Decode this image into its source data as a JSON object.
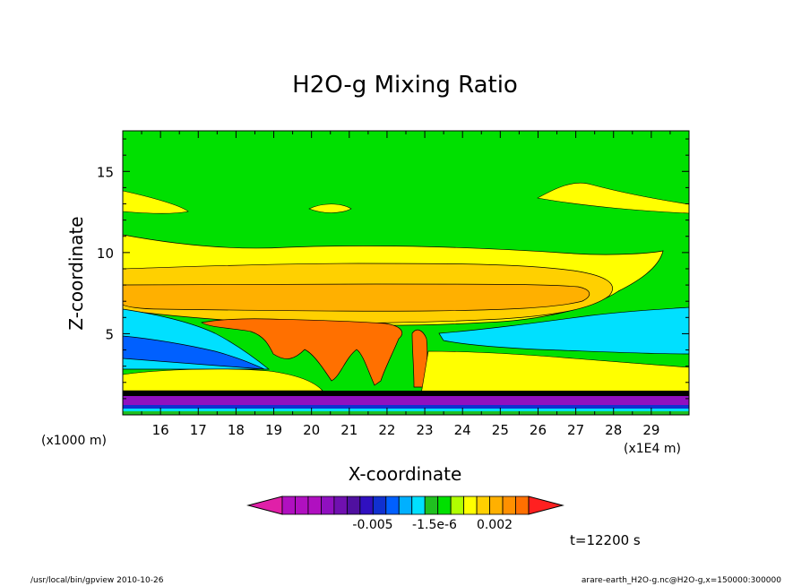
{
  "chart_data": {
    "type": "heatmap",
    "title": "H2O-g Mixing Ratio",
    "xlabel": "X-coordinate",
    "ylabel": "Z-coordinate",
    "x_unit_label": "(x1E4 m)",
    "y_unit_label": "(x1000 m)",
    "x_ticks": [
      "16",
      "17",
      "18",
      "19",
      "20",
      "21",
      "22",
      "23",
      "24",
      "25",
      "26",
      "27",
      "28",
      "29"
    ],
    "y_ticks": [
      "5",
      "10",
      "15"
    ],
    "xlim": [
      15.0,
      30.0
    ],
    "ylim": [
      0.0,
      17.5
    ],
    "colorbar_labels": [
      "-0.005",
      "-1.5e-6",
      "0.002"
    ],
    "colorbar_colors": [
      "#e020a8",
      "#b010c0",
      "#b010c0",
      "#b010c0",
      "#9010c0",
      "#7010b0",
      "#5010a0",
      "#3010c0",
      "#1030d0",
      "#0060ff",
      "#00b0ff",
      "#00e0ff",
      "#20c020",
      "#00e000",
      "#b0ff00",
      "#ffff00",
      "#ffd000",
      "#ffb000",
      "#ff9000",
      "#ff7000",
      "#ff2020"
    ],
    "time_label": "t=12200 s",
    "layers": [
      {
        "name": "background",
        "color": "#00e000"
      },
      {
        "name": "upper_yellow_band",
        "color": "#ffff00",
        "z_range": [
          8.6,
          11.0
        ]
      },
      {
        "name": "orange_layer",
        "color": "#ffd000",
        "z_range": [
          7.2,
          9.6
        ]
      },
      {
        "name": "deep_orange_anvil",
        "color": "#ffb000",
        "z_range": [
          6.8,
          8.2
        ]
      },
      {
        "name": "convective_core",
        "color": "#ff7000",
        "x_range": [
          19.5,
          22.4
        ],
        "z_range": [
          2.0,
          6.0
        ]
      },
      {
        "name": "cyan_right_layer",
        "color": "#00e0ff",
        "x_range": [
          23.5,
          30.0
        ],
        "z_range": [
          3.0,
          6.8
        ]
      },
      {
        "name": "blue_left_layer",
        "color": "#0060ff",
        "x_range": [
          15.0,
          19.5
        ],
        "z_range": [
          2.6,
          4.8
        ]
      },
      {
        "name": "purple_ground_layer",
        "color": "#9010c0",
        "z_range": [
          0.0,
          1.5
        ]
      }
    ]
  },
  "footer": {
    "left": "/usr/local/bin/gpview  2010-10-26",
    "right": "arare-earth_H2O-g.nc@H2O-g,x=150000:300000"
  }
}
